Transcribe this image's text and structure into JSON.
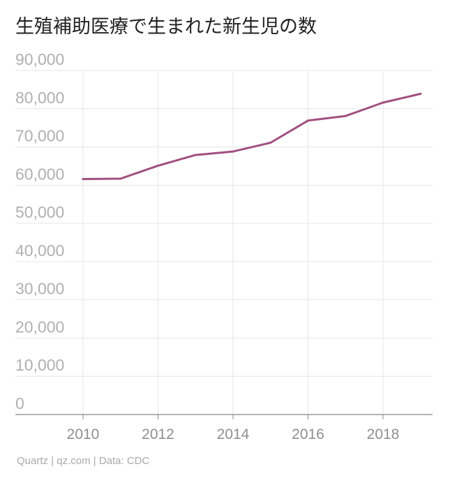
{
  "title": "生殖補助医療で生まれた新生児の数",
  "source": "Quartz | qz.com | Data: CDC",
  "colors": {
    "line": "#a0507f",
    "grid": "#e6e6e6",
    "axis": "#888888"
  },
  "chart_data": {
    "type": "line",
    "title": "生殖補助医療で生まれた新生児の数",
    "x": [
      2010,
      2011,
      2012,
      2013,
      2014,
      2015,
      2016,
      2017,
      2018,
      2019
    ],
    "series": [
      {
        "values": [
          61600,
          61700,
          65100,
          67900,
          68800,
          71100,
          76900,
          78100,
          81600,
          83900
        ]
      }
    ],
    "xticks": [
      "2010",
      "2012",
      "2014",
      "2016",
      "2018"
    ],
    "yticks": [
      "0",
      "10,000",
      "20,000",
      "30,000",
      "40,000",
      "50,000",
      "60,000",
      "70,000",
      "80,000",
      "90,000"
    ],
    "ylim": [
      0,
      90000
    ],
    "xlim": [
      2009,
      2019.6
    ],
    "grid": true,
    "xlabel": "",
    "ylabel": ""
  }
}
